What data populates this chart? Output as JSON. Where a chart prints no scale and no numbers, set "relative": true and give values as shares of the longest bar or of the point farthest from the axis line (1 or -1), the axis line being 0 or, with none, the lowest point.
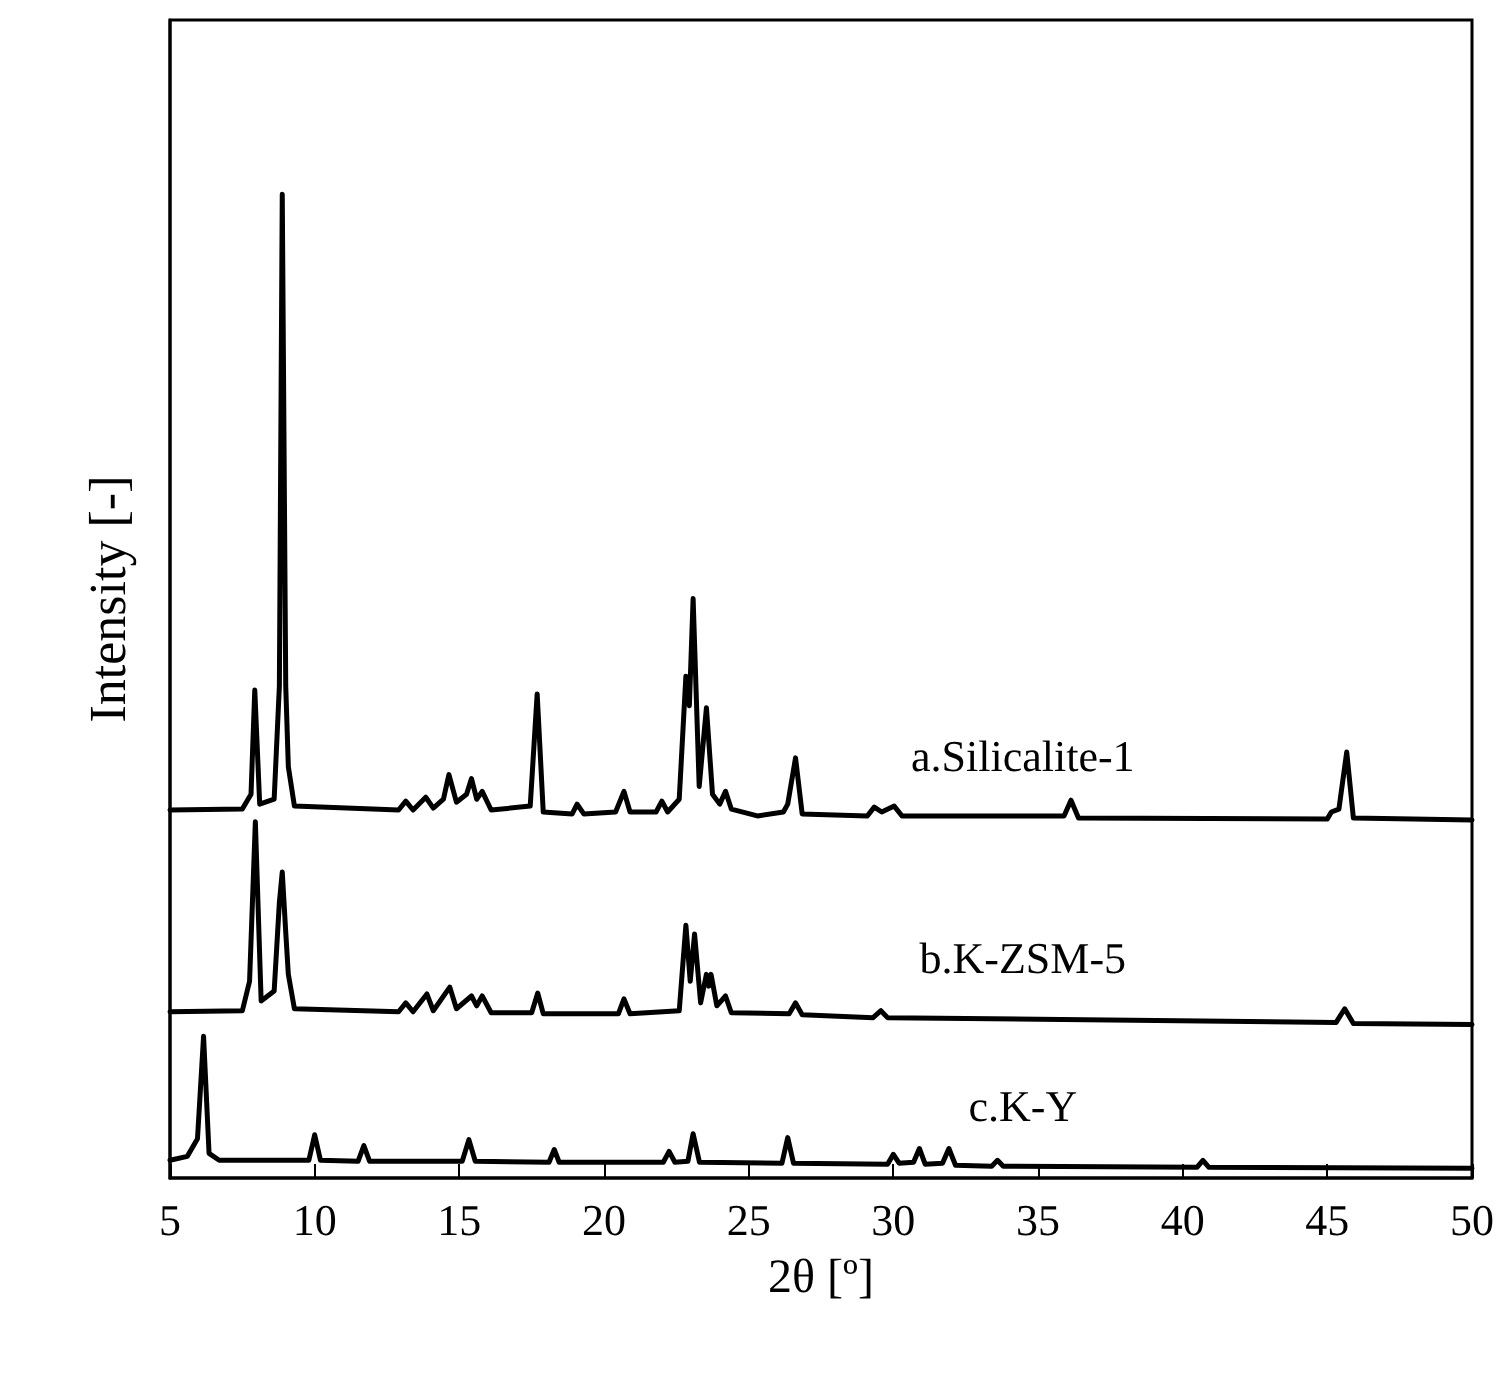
{
  "chart_data": {
    "type": "line",
    "relative": true,
    "xlabel": "2θ [º]",
    "ylabel": "Intensity [-]",
    "xlim": [
      5,
      50
    ],
    "xticks": [
      5,
      10,
      15,
      20,
      25,
      30,
      35,
      40,
      45,
      50
    ],
    "grid": false,
    "marker": "none",
    "line_style": "solid",
    "series": [
      {
        "name": "a.Silicalite-1",
        "color": "#000000",
        "x": [
          5,
          7.5,
          7.8,
          7.93,
          8.1,
          8.6,
          8.78,
          8.88,
          9.0,
          9.09,
          9.3,
          12.9,
          13.15,
          13.4,
          13.84,
          14.1,
          14.45,
          14.64,
          14.9,
          15.25,
          15.42,
          15.6,
          15.79,
          16.1,
          17.45,
          17.69,
          17.9,
          18.9,
          19.07,
          19.3,
          20.4,
          20.69,
          20.9,
          21.8,
          22.0,
          22.2,
          22.6,
          22.83,
          22.95,
          23.08,
          23.29,
          23.54,
          23.75,
          24.0,
          24.2,
          24.4,
          25.3,
          26.2,
          26.35,
          26.62,
          26.85,
          29.1,
          29.34,
          29.6,
          30.03,
          30.3,
          32.0,
          35.9,
          36.14,
          36.4,
          45.0,
          45.14,
          45.4,
          45.67,
          45.9,
          50
        ],
        "values": [
          0.374,
          0.375,
          0.39,
          0.496,
          0.38,
          0.385,
          0.5,
          1.0,
          0.5,
          0.418,
          0.378,
          0.374,
          0.383,
          0.374,
          0.387,
          0.376,
          0.385,
          0.41,
          0.382,
          0.39,
          0.406,
          0.385,
          0.393,
          0.374,
          0.378,
          0.492,
          0.372,
          0.37,
          0.38,
          0.37,
          0.372,
          0.393,
          0.372,
          0.372,
          0.383,
          0.372,
          0.385,
          0.51,
          0.48,
          0.589,
          0.398,
          0.478,
          0.39,
          0.38,
          0.393,
          0.375,
          0.368,
          0.372,
          0.38,
          0.427,
          0.37,
          0.368,
          0.377,
          0.372,
          0.378,
          0.368,
          0.368,
          0.368,
          0.384,
          0.366,
          0.365,
          0.372,
          0.375,
          0.433,
          0.366,
          0.364
        ]
      },
      {
        "name": "b.K-ZSM-5",
        "color": "#000000",
        "x": [
          5,
          7.5,
          7.75,
          7.95,
          8.15,
          8.6,
          8.78,
          8.88,
          9.0,
          9.09,
          9.3,
          12.9,
          13.15,
          13.4,
          13.88,
          14.1,
          14.67,
          14.9,
          15.42,
          15.6,
          15.79,
          16.1,
          17.5,
          17.71,
          17.9,
          20.5,
          20.69,
          20.9,
          22.6,
          22.83,
          22.98,
          23.13,
          23.34,
          23.54,
          23.62,
          23.7,
          23.9,
          24.2,
          24.4,
          26.4,
          26.62,
          26.85,
          29.3,
          29.57,
          29.8,
          45.3,
          45.6,
          45.9,
          50
        ],
        "values": [
          0.169,
          0.17,
          0.2,
          0.362,
          0.18,
          0.19,
          0.28,
          0.311,
          0.25,
          0.207,
          0.172,
          0.169,
          0.178,
          0.169,
          0.187,
          0.17,
          0.194,
          0.172,
          0.185,
          0.175,
          0.185,
          0.168,
          0.168,
          0.188,
          0.167,
          0.167,
          0.182,
          0.167,
          0.17,
          0.257,
          0.2,
          0.248,
          0.178,
          0.207,
          0.195,
          0.207,
          0.175,
          0.185,
          0.168,
          0.167,
          0.178,
          0.166,
          0.163,
          0.17,
          0.163,
          0.158,
          0.172,
          0.157,
          0.156
        ]
      },
      {
        "name": "c.K-Y",
        "color": "#000000",
        "x": [
          5,
          5.6,
          5.95,
          6.16,
          6.35,
          6.7,
          9.8,
          10.0,
          10.2,
          11.5,
          11.7,
          11.9,
          15.1,
          15.33,
          15.55,
          18.1,
          18.28,
          18.45,
          22.05,
          22.25,
          22.45,
          22.9,
          23.08,
          23.3,
          26.15,
          26.35,
          26.55,
          29.8,
          30.0,
          30.2,
          30.7,
          30.9,
          31.1,
          31.7,
          31.92,
          32.15,
          33.4,
          33.6,
          33.8,
          40.5,
          40.7,
          40.9,
          50
        ],
        "values": [
          0.018,
          0.022,
          0.04,
          0.144,
          0.025,
          0.018,
          0.018,
          0.044,
          0.018,
          0.017,
          0.033,
          0.017,
          0.017,
          0.039,
          0.017,
          0.016,
          0.029,
          0.016,
          0.016,
          0.027,
          0.016,
          0.017,
          0.045,
          0.016,
          0.015,
          0.041,
          0.015,
          0.014,
          0.024,
          0.015,
          0.016,
          0.03,
          0.014,
          0.015,
          0.03,
          0.013,
          0.012,
          0.018,
          0.012,
          0.011,
          0.018,
          0.011,
          0.01
        ]
      }
    ]
  }
}
